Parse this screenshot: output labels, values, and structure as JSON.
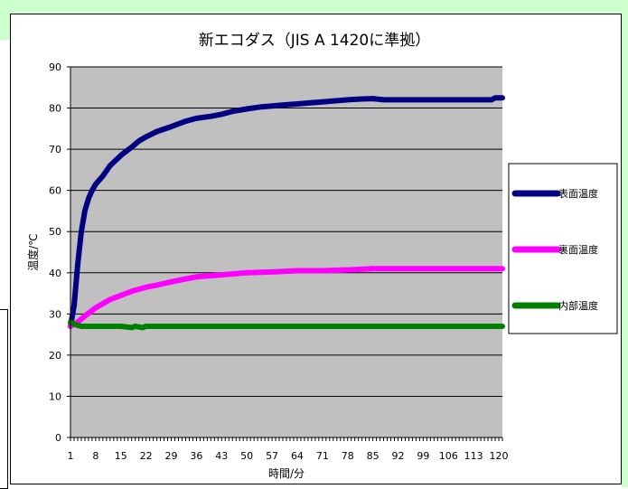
{
  "chart_data": {
    "type": "line",
    "title": "新エコダス（JIS A 1420に準拠）",
    "xlabel": "時間/分",
    "ylabel": "温度/℃",
    "ylim": [
      0,
      90
    ],
    "yticks": [
      0,
      10,
      20,
      30,
      40,
      50,
      60,
      70,
      80,
      90
    ],
    "xlim": [
      1,
      121
    ],
    "xticks": [
      1,
      8,
      15,
      22,
      29,
      36,
      43,
      50,
      57,
      64,
      71,
      78,
      85,
      92,
      99,
      106,
      113,
      120
    ],
    "grid": true,
    "legend_position": "right",
    "colors": {
      "plot_bg": "#c0c0c0",
      "surface": "#000080",
      "back": "#ff00ff",
      "internal": "#008000"
    },
    "series": [
      {
        "name": "表面温度",
        "color": "#000080",
        "points": [
          [
            1,
            27
          ],
          [
            2,
            32
          ],
          [
            3,
            42
          ],
          [
            4,
            50
          ],
          [
            5,
            55
          ],
          [
            6,
            58
          ],
          [
            7,
            60
          ],
          [
            8,
            61.5
          ],
          [
            10,
            63.5
          ],
          [
            12,
            66
          ],
          [
            15,
            68.5
          ],
          [
            18,
            70.5
          ],
          [
            20,
            72
          ],
          [
            22,
            73
          ],
          [
            25,
            74.3
          ],
          [
            29,
            75.5
          ],
          [
            33,
            76.8
          ],
          [
            36,
            77.5
          ],
          [
            40,
            78
          ],
          [
            43,
            78.5
          ],
          [
            46,
            79.2
          ],
          [
            50,
            79.8
          ],
          [
            54,
            80.3
          ],
          [
            57,
            80.5
          ],
          [
            61,
            80.8
          ],
          [
            64,
            81
          ],
          [
            68,
            81.3
          ],
          [
            71,
            81.5
          ],
          [
            75,
            81.8
          ],
          [
            78,
            82
          ],
          [
            82,
            82.2
          ],
          [
            85,
            82.3
          ],
          [
            88,
            82
          ],
          [
            92,
            82
          ],
          [
            99,
            82
          ],
          [
            106,
            82
          ],
          [
            113,
            82
          ],
          [
            118,
            82
          ],
          [
            119,
            82.5
          ],
          [
            121,
            82.5
          ]
        ]
      },
      {
        "name": "裏面温度",
        "color": "#ff00ff",
        "points": [
          [
            1,
            27
          ],
          [
            3,
            28
          ],
          [
            5,
            29.5
          ],
          [
            8,
            31.5
          ],
          [
            12,
            33.5
          ],
          [
            15,
            34.5
          ],
          [
            18,
            35.5
          ],
          [
            22,
            36.5
          ],
          [
            25,
            37
          ],
          [
            29,
            37.8
          ],
          [
            33,
            38.5
          ],
          [
            36,
            39
          ],
          [
            40,
            39.3
          ],
          [
            43,
            39.5
          ],
          [
            50,
            40
          ],
          [
            57,
            40.2
          ],
          [
            64,
            40.5
          ],
          [
            71,
            40.5
          ],
          [
            78,
            40.7
          ],
          [
            85,
            41
          ],
          [
            92,
            41
          ],
          [
            99,
            41
          ],
          [
            106,
            41
          ],
          [
            113,
            41
          ],
          [
            121,
            41
          ]
        ]
      },
      {
        "name": "内部温度",
        "color": "#008000",
        "points": [
          [
            1,
            28
          ],
          [
            2,
            27.5
          ],
          [
            4,
            27
          ],
          [
            8,
            27
          ],
          [
            15,
            27
          ],
          [
            18,
            26.7
          ],
          [
            19,
            27
          ],
          [
            21,
            26.7
          ],
          [
            22,
            27
          ],
          [
            29,
            27
          ],
          [
            43,
            27
          ],
          [
            64,
            27
          ],
          [
            85,
            27
          ],
          [
            106,
            27
          ],
          [
            121,
            27
          ]
        ]
      }
    ]
  }
}
